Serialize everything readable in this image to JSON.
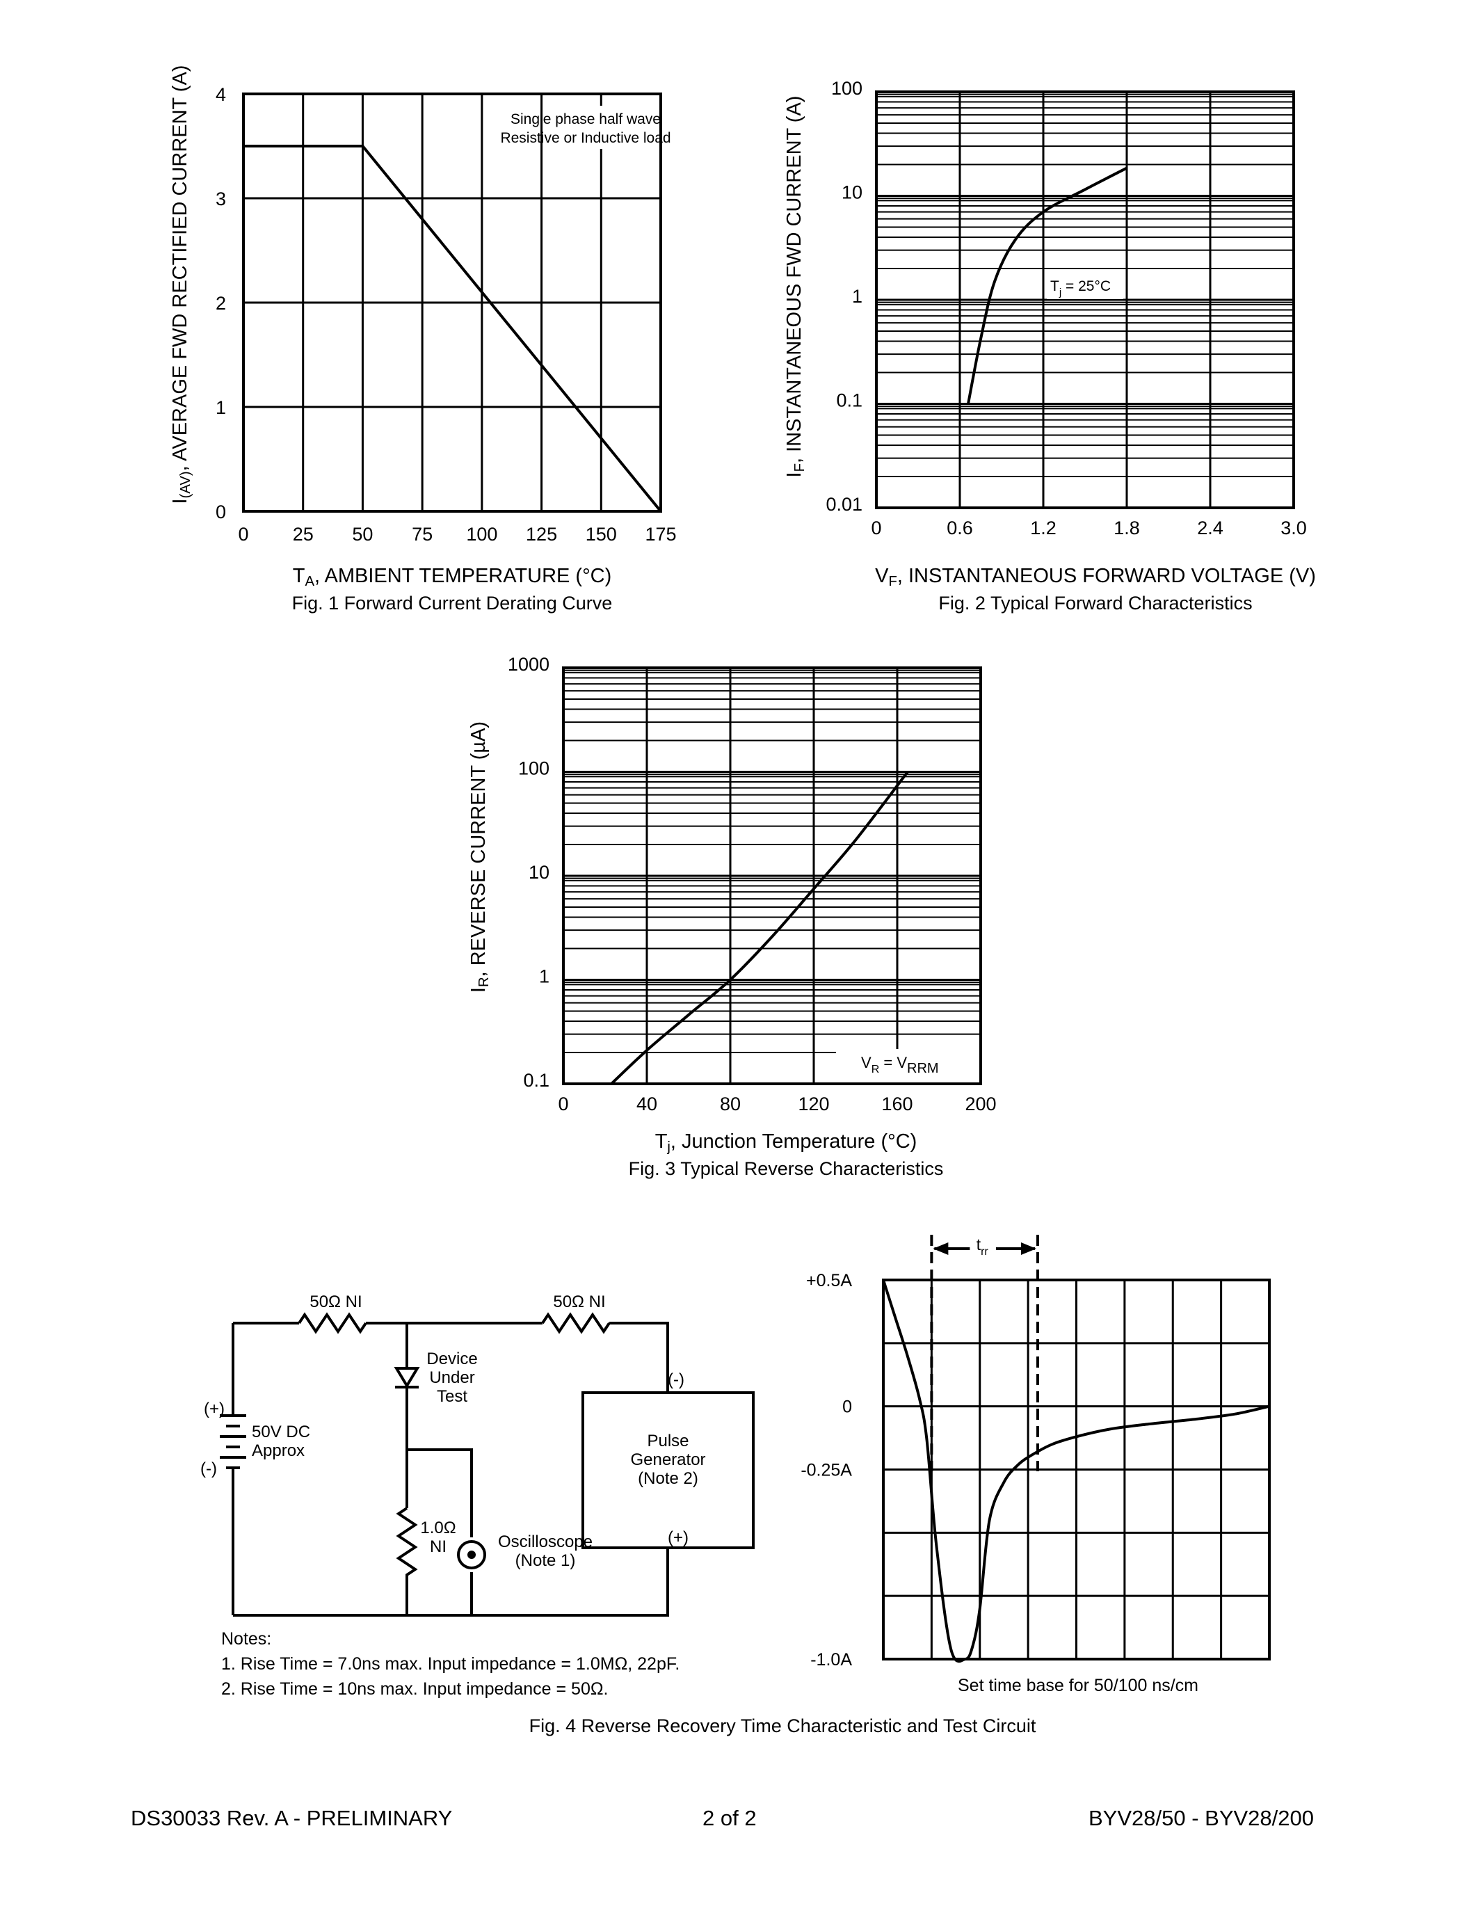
{
  "charts": {
    "fig1": {
      "caption": "Fig. 1  Forward Current Derating Curve",
      "xlabel_main": "T",
      "xlabel_sub": "A",
      "xlabel_rest": ", AMBIENT TEMPERATURE (°C)",
      "ylabel_main": "I",
      "ylabel_sub": "(AV)",
      "ylabel_rest": ", AVERAGE FWD RECTIFIED CURRENT (A)",
      "note_line1": "Single phase half wave",
      "note_line2": "Resistive or Inductive load"
    },
    "fig2": {
      "caption": "Fig. 2  Typical Forward Characteristics",
      "xlabel_main": "V",
      "xlabel_sub": "F",
      "xlabel_rest": ", INSTANTANEOUS FORWARD VOLTAGE (V)",
      "ylabel_main": "I",
      "ylabel_sub": "F",
      "ylabel_rest": ", INSTANTANEOUS FWD CURRENT (A)",
      "annot_main": "T",
      "annot_sub": "j",
      "annot_rest": " = 25°C"
    },
    "fig3": {
      "caption": "Fig. 3  Typical Reverse Characteristics",
      "xlabel_main": "T",
      "xlabel_sub": "j",
      "xlabel_rest": ", Junction Temperature (°C)",
      "ylabel_main": "I",
      "ylabel_sub": "R",
      "ylabel_rest": ", REVERSE CURRENT (µA)",
      "annot_a": "V",
      "annot_a_sub": "R",
      "annot_b": " = V",
      "annot_b_sub": "RRM"
    },
    "fig4": {
      "caption": "Fig. 4  Reverse Recovery Time Characteristic and Test Circuit",
      "timebase": "Set time base for 50/100 ns/cm",
      "trr_main": "t",
      "trr_sub": "rr"
    }
  },
  "chart_data": [
    {
      "type": "line",
      "title": "Fig. 1  Forward Current Derating Curve",
      "xlabel": "TA, AMBIENT TEMPERATURE (°C)",
      "ylabel": "I(AV), AVERAGE FWD RECTIFIED CURRENT (A)",
      "xlim": [
        0,
        175
      ],
      "ylim": [
        0,
        4
      ],
      "xticks": [
        0,
        25,
        50,
        75,
        100,
        125,
        150,
        175
      ],
      "yticks": [
        0,
        1,
        2,
        3,
        4
      ],
      "grid": true,
      "series": [
        {
          "x": [
            0,
            50,
            175
          ],
          "y": [
            3.5,
            3.5,
            0
          ]
        }
      ],
      "annotations": [
        "Single phase half wave",
        "Resistive or Inductive load"
      ]
    },
    {
      "type": "line",
      "title": "Fig. 2  Typical Forward Characteristics",
      "xlabel": "VF, INSTANTANEOUS FORWARD VOLTAGE (V)",
      "ylabel": "IF, INSTANTANEOUS FWD CURRENT (A)",
      "xlim": [
        0,
        3.0
      ],
      "ylim": [
        0.01,
        100
      ],
      "yscale": "log",
      "xticks": [
        "0",
        "0.6",
        "1.2",
        "1.8",
        "2.4",
        "3.0"
      ],
      "yticks": [
        "0.01",
        "0.1",
        "1",
        "10",
        "100"
      ],
      "grid": true,
      "series": [
        {
          "x": [
            0.66,
            0.75,
            0.85,
            1.0,
            1.2,
            1.5,
            1.8
          ],
          "y": [
            0.1,
            0.42,
            1.5,
            3.8,
            7.0,
            11.5,
            18.5
          ]
        }
      ],
      "annotations": [
        "Tj = 25°C"
      ]
    },
    {
      "type": "line",
      "title": "Fig. 3  Typical Reverse Characteristics",
      "xlabel": "Tj, Junction Temperature (°C)",
      "ylabel": "IR, REVERSE CURRENT (µA)",
      "xlim": [
        0,
        200
      ],
      "ylim": [
        0.1,
        1000
      ],
      "yscale": "log",
      "xticks": [
        "0",
        "40",
        "80",
        "120",
        "160",
        "200"
      ],
      "yticks": [
        "0.1",
        "1",
        "10",
        "100",
        "1000"
      ],
      "grid": true,
      "series": [
        {
          "x": [
            23,
            40,
            60,
            80,
            100,
            120,
            140,
            165
          ],
          "y": [
            0.1,
            0.21,
            0.46,
            1.0,
            2.6,
            7.5,
            22,
            100
          ]
        }
      ],
      "annotations": [
        "VR = VRRM"
      ]
    },
    {
      "type": "line",
      "title": "Fig. 4  Reverse Recovery Time Characteristic and Test Circuit",
      "xlabel": "",
      "ylabel": "",
      "xlim": [
        0,
        8
      ],
      "ylim": [
        -1.0,
        0.5
      ],
      "ytick_labels": [
        "+0.5A",
        "0",
        "-0.25A",
        "-1.0A"
      ],
      "yticks": [
        0.5,
        0,
        -0.25,
        -1.0
      ],
      "grid": true,
      "series": [
        {
          "x": [
            0,
            0.25,
            0.5,
            0.75,
            0.9,
            1.1,
            1.4,
            1.7,
            1.85,
            2.0,
            2.2,
            2.5,
            2.8,
            3.1,
            3.5,
            4.0,
            4.7,
            5.5,
            6.5,
            7.3,
            8.0
          ],
          "y": [
            0.5,
            0.35,
            0.2,
            0.03,
            -0.13,
            -0.55,
            -0.96,
            -1.0,
            -0.95,
            -0.8,
            -0.45,
            -0.3,
            -0.23,
            -0.19,
            -0.15,
            -0.12,
            -0.09,
            -0.07,
            -0.05,
            -0.03,
            0
          ]
        }
      ],
      "trr_markers_x": [
        1.0,
        3.2
      ],
      "annotations": [
        "trr",
        "Set time base for 50/100 ns/cm"
      ]
    }
  ],
  "circuit": {
    "r1_label": "50Ω NI",
    "r2_label": "50Ω NI",
    "dut_line1": "Device",
    "dut_line2": "Under",
    "dut_line3": "Test",
    "dc_plus": "(+)",
    "dc_minus": "(-)",
    "dc_line1": "50V DC",
    "dc_line2": "Approx",
    "pg_minus": "(-)",
    "pg_plus": "(+)",
    "pg_line1": "Pulse",
    "pg_line2": "Generator",
    "pg_line3": "(Note 2)",
    "r3_line1": "1.0Ω",
    "r3_line2": "NI",
    "osc_line1": "Oscilloscope",
    "osc_line2": "(Note 1)"
  },
  "notes": {
    "title": "Notes:",
    "line1": "1. Rise Time = 7.0ns max. Input impedance = 1.0MΩ, 22pF.",
    "line2": "2. Rise Time = 10ns max. Input impedance = 50Ω."
  },
  "footer": {
    "left": "DS30033 Rev. A - PRELIMINARY",
    "center": "2 of 2",
    "right": "BYV28/50 - BYV28/200"
  }
}
